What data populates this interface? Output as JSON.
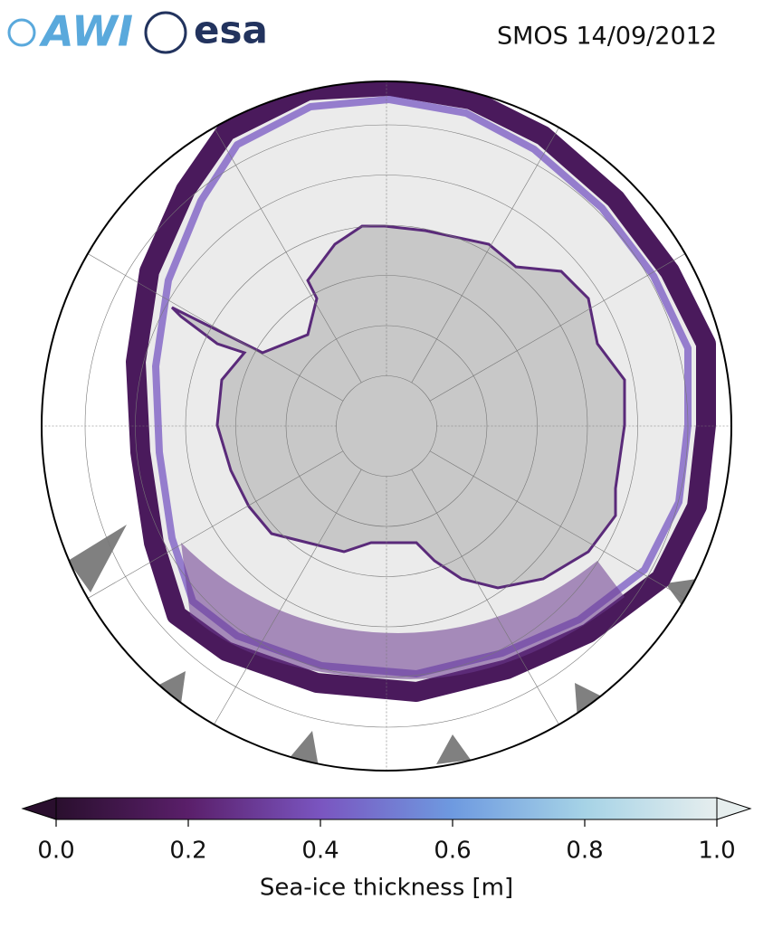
{
  "header": {
    "logos": [
      "AWI",
      "esa"
    ],
    "title": "SMOS 14/09/2012"
  },
  "colorbar": {
    "label": "Sea-ice thickness [m]",
    "lim": [
      0,
      1
    ],
    "ticks": [
      {
        "value": 0,
        "label": "0.0"
      },
      {
        "value": 0.2,
        "label": "0.2"
      },
      {
        "value": 0.4,
        "label": "0.4"
      },
      {
        "value": 0.6,
        "label": "0.6"
      },
      {
        "value": 0.8,
        "label": "0.8"
      },
      {
        "value": 1,
        "label": "1.0"
      }
    ],
    "colors": [
      "#2a0f2e",
      "#5a1f6a",
      "#7a55c0",
      "#6e9ae0",
      "#a6d3e6",
      "#e6eeee"
    ]
  }
}
